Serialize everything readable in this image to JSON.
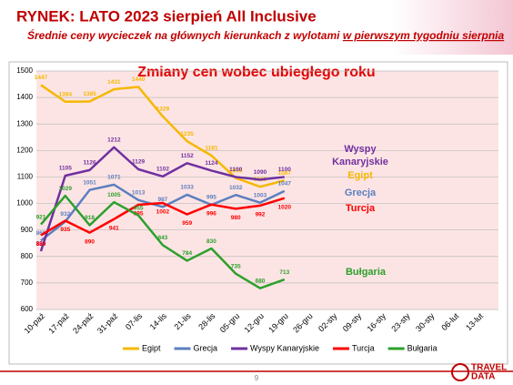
{
  "title": "RYNEK: LATO 2023 sierpień All Inclusive",
  "subtitle": {
    "text": "Średnie ceny wycieczek na głównych kierunkach z wylotami",
    "emphasis": "w pierwszym tygodniu sierpnia"
  },
  "page_number": "9",
  "logo": [
    "TRAVEL",
    "DATA"
  ],
  "chart_data": {
    "type": "line",
    "title": "Zmiany cen wobec ubiegłego roku",
    "categories": [
      "10-paź",
      "17-paź",
      "24-paź",
      "31-paź",
      "07-lis",
      "14-lis",
      "21-lis",
      "28-lis",
      "05-gru",
      "12-gru",
      "19-gru",
      "26-gru",
      "02-sty",
      "09-sty",
      "16-sty",
      "23-sty",
      "30-sty",
      "06-lut",
      "13-lut"
    ],
    "series": [
      {
        "name": "Egipt",
        "color": "#f5b800",
        "values": [
          1447,
          1384,
          1385,
          1431,
          1440,
          1329,
          1235,
          1181,
          1096,
          1063,
          1087,
          null,
          null,
          null,
          null,
          null,
          null,
          null,
          null
        ]
      },
      {
        "name": "Grecja",
        "color": "#5b7fbf",
        "values": [
          860,
          932,
          1051,
          1071,
          1013,
          987,
          1033,
          995,
          1032,
          1003,
          1047,
          null,
          null,
          null,
          null,
          null,
          null,
          null,
          null
        ]
      },
      {
        "name": "Wyspy Kanaryjskie",
        "color": "#7030a0",
        "values": [
          820,
          1105,
          1126,
          1212,
          1129,
          1102,
          1152,
          1124,
          1100,
          1090,
          1100,
          null,
          null,
          null,
          null,
          null,
          null,
          null,
          null
        ]
      },
      {
        "name": "Turcja",
        "color": "#ff0000",
        "values": [
          880,
          935,
          890,
          941,
          995,
          1002,
          959,
          996,
          980,
          992,
          1020,
          null,
          null,
          null,
          null,
          null,
          null,
          null,
          null
        ]
      },
      {
        "name": "Bułgaria",
        "color": "#2ca02c",
        "values": [
          921,
          1029,
          918,
          1005,
          955,
          843,
          784,
          830,
          735,
          680,
          713,
          null,
          null,
          null,
          null,
          null,
          null,
          null,
          null
        ]
      }
    ],
    "ylim": [
      600,
      1500
    ],
    "yticks": [
      600,
      700,
      800,
      900,
      1000,
      1100,
      1200,
      1300,
      1400,
      1500
    ],
    "grid": true,
    "legend": "bottom"
  }
}
